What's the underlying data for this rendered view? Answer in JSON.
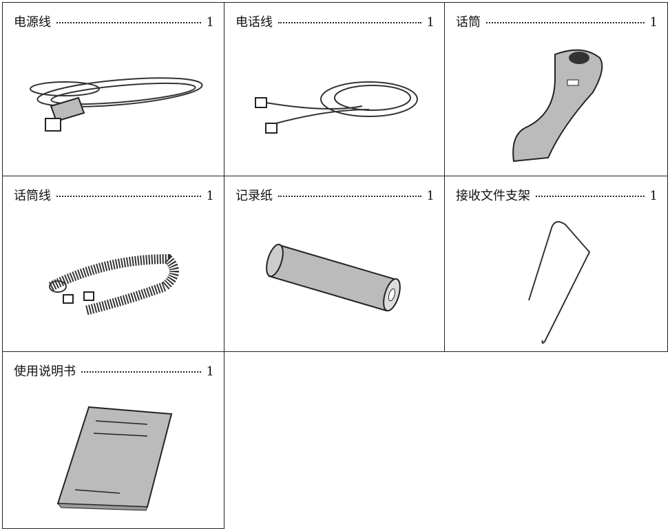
{
  "items": [
    {
      "name": "电源线",
      "quantity": 1
    },
    {
      "name": "电话线",
      "quantity": 1
    },
    {
      "name": "话筒",
      "quantity": 1
    },
    {
      "name": "话筒线",
      "quantity": 1
    },
    {
      "name": "记录纸",
      "quantity": 1
    },
    {
      "name": "接收文件支架",
      "quantity": 1
    },
    {
      "name": "使用说明书",
      "quantity": 1
    }
  ]
}
